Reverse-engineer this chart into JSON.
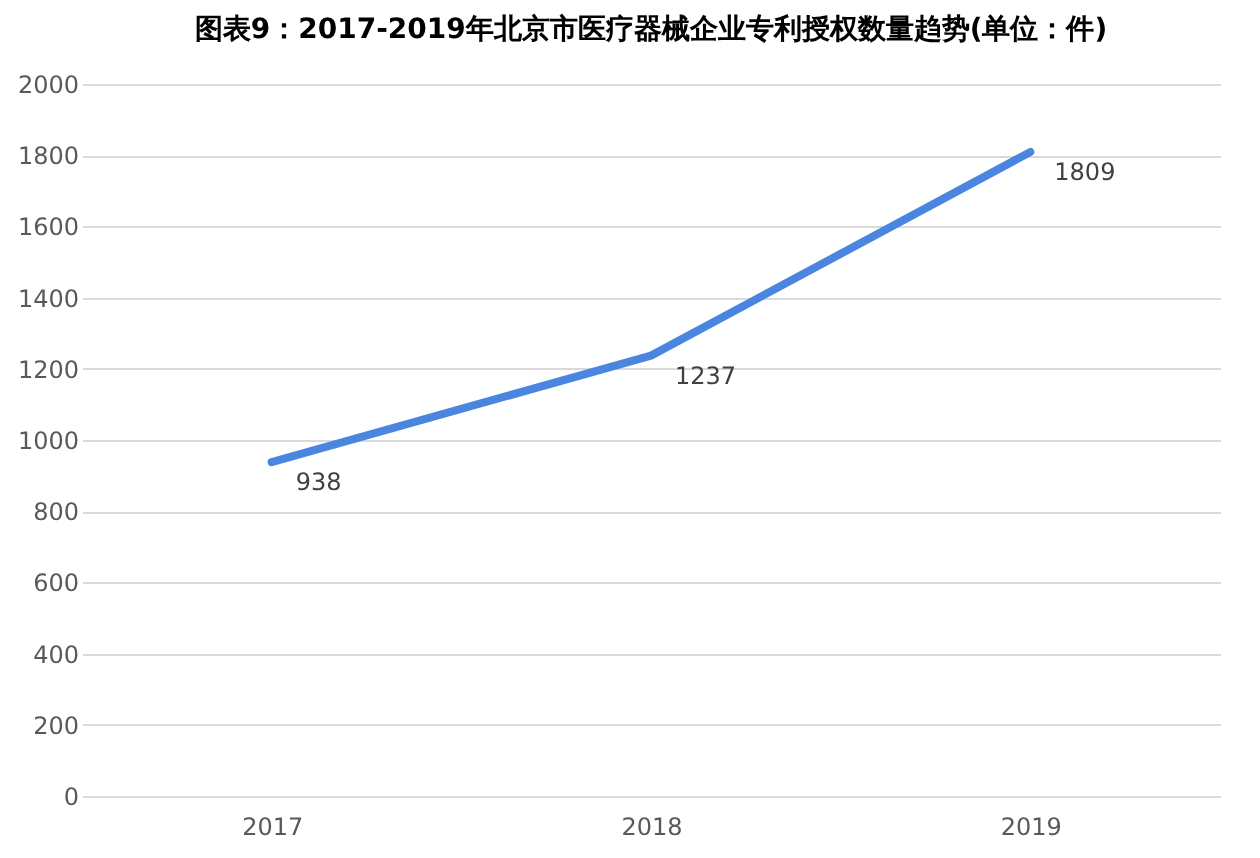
{
  "chart_data": {
    "type": "line",
    "title": "图表9：2017-2019年北京市医疗器械企业专利授权数量趋势(单位：件)",
    "categories": [
      "2017",
      "2018",
      "2019"
    ],
    "values": [
      938,
      1237,
      1809
    ],
    "color": "#4a86e0",
    "ylim": [
      0,
      2000
    ],
    "yticks": [
      0,
      200,
      400,
      600,
      800,
      1000,
      1200,
      1400,
      1600,
      1800,
      2000
    ],
    "grid": "y",
    "data_labels": true
  }
}
